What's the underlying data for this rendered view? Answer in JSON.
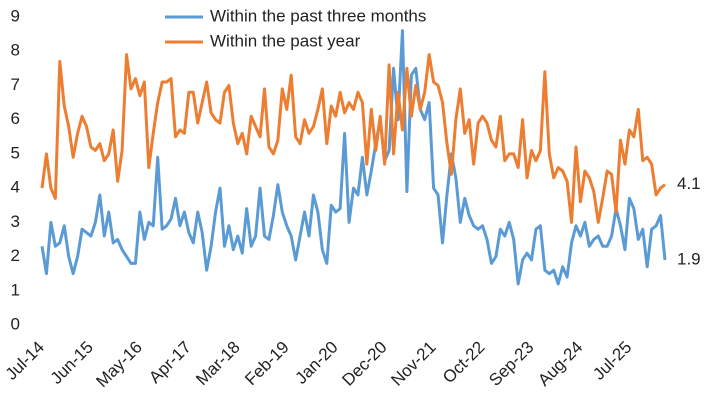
{
  "chart_data": {
    "type": "line",
    "categories": [
      "Jul-14",
      null,
      null,
      null,
      null,
      null,
      null,
      null,
      null,
      null,
      null,
      "Jun-15",
      null,
      null,
      null,
      null,
      null,
      null,
      null,
      null,
      null,
      null,
      "May-16",
      null,
      null,
      null,
      null,
      null,
      null,
      null,
      null,
      null,
      null,
      "Apr-17",
      null,
      null,
      null,
      null,
      null,
      null,
      null,
      null,
      null,
      null,
      "Mar-18",
      null,
      null,
      null,
      null,
      null,
      null,
      null,
      null,
      null,
      null,
      "Feb-19",
      null,
      null,
      null,
      null,
      null,
      null,
      null,
      null,
      null,
      null,
      "Jan-20",
      null,
      null,
      null,
      null,
      null,
      null,
      null,
      null,
      null,
      null,
      "Dec-20",
      null,
      null,
      null,
      null,
      null,
      null,
      null,
      null,
      null,
      null,
      "Nov-21",
      null,
      null,
      null,
      null,
      null,
      null,
      null,
      null,
      null,
      null,
      "Oct-22",
      null,
      null,
      null,
      null,
      null,
      null,
      null,
      null,
      null,
      null,
      "Sep-23",
      null,
      null,
      null,
      null,
      null,
      null,
      null,
      null,
      null,
      null,
      "Aug-24",
      null,
      null,
      null,
      null,
      null,
      null,
      null,
      null,
      null,
      null,
      "Jul-25",
      null,
      null,
      null,
      null,
      null,
      null,
      null,
      null
    ],
    "series": [
      {
        "name": "Within the past three months",
        "color": "#5b9bd5",
        "values": [
          2.3,
          1.5,
          3.0,
          2.3,
          2.4,
          2.9,
          2.0,
          1.5,
          2.0,
          2.8,
          2.7,
          2.6,
          3.0,
          3.8,
          2.6,
          3.3,
          2.4,
          2.5,
          2.2,
          2.0,
          1.8,
          1.8,
          3.3,
          2.5,
          3.0,
          2.9,
          4.9,
          2.8,
          2.9,
          3.1,
          3.7,
          2.9,
          3.3,
          2.7,
          2.4,
          3.3,
          2.7,
          1.6,
          2.3,
          3.3,
          4.0,
          2.3,
          2.9,
          2.2,
          2.6,
          2.1,
          3.4,
          2.3,
          2.6,
          4.0,
          2.6,
          2.5,
          3.2,
          4.1,
          3.3,
          2.9,
          2.6,
          1.9,
          2.6,
          3.3,
          2.6,
          3.8,
          3.3,
          2.2,
          1.8,
          3.5,
          3.3,
          3.4,
          5.6,
          3.0,
          4.0,
          3.8,
          4.9,
          3.8,
          4.5,
          5.3,
          6.0,
          4.8,
          5.1,
          7.5,
          6.0,
          8.6,
          3.9,
          7.3,
          7.5,
          6.3,
          6.0,
          6.5,
          4.0,
          3.8,
          2.4,
          3.8,
          5.0,
          4.3,
          3.0,
          3.7,
          3.2,
          2.9,
          2.8,
          2.9,
          2.5,
          1.8,
          2.0,
          2.8,
          2.6,
          3.0,
          2.5,
          1.2,
          1.9,
          2.1,
          1.9,
          2.8,
          2.9,
          1.6,
          1.5,
          1.6,
          1.2,
          1.7,
          1.4,
          2.4,
          2.9,
          2.6,
          3.0,
          2.3,
          2.5,
          2.6,
          2.3,
          2.3,
          2.6,
          3.4,
          2.9,
          2.2,
          3.7,
          3.4,
          2.5,
          2.8,
          1.7,
          2.8,
          2.9,
          3.2,
          1.9
        ]
      },
      {
        "name": "Within the past year",
        "color": "#ed7d31",
        "values": [
          4.0,
          5.0,
          4.0,
          3.7,
          7.7,
          6.4,
          5.8,
          4.9,
          5.6,
          6.1,
          5.8,
          5.2,
          5.1,
          5.3,
          4.8,
          5.0,
          5.7,
          4.2,
          5.1,
          7.9,
          6.9,
          7.2,
          6.7,
          7.1,
          4.6,
          5.6,
          6.5,
          7.1,
          7.1,
          7.2,
          5.5,
          5.7,
          5.6,
          6.8,
          6.8,
          5.9,
          6.5,
          7.1,
          6.2,
          6.0,
          5.9,
          6.8,
          7.0,
          5.9,
          5.3,
          5.6,
          5.0,
          6.1,
          5.8,
          5.5,
          6.9,
          5.2,
          5.0,
          5.4,
          6.9,
          6.3,
          7.3,
          5.5,
          5.3,
          6.0,
          5.6,
          5.8,
          6.3,
          6.9,
          5.3,
          6.4,
          6.1,
          6.8,
          6.2,
          6.5,
          6.3,
          6.8,
          6.5,
          4.7,
          6.3,
          5.1,
          6.1,
          4.7,
          7.6,
          5.0,
          6.8,
          5.7,
          7.5,
          6.1,
          7.0,
          6.3,
          6.8,
          7.9,
          7.1,
          7.0,
          6.5,
          5.3,
          4.4,
          6.0,
          6.9,
          5.6,
          6.0,
          4.7,
          5.9,
          6.1,
          5.9,
          5.4,
          5.2,
          6.1,
          4.8,
          5.0,
          5.0,
          4.6,
          6.0,
          4.3,
          5.1,
          4.8,
          5.1,
          7.4,
          5.0,
          4.3,
          4.6,
          4.5,
          4.2,
          3.0,
          5.2,
          3.6,
          4.5,
          4.3,
          3.9,
          3.0,
          3.7,
          4.5,
          4.4,
          3.3,
          5.4,
          4.7,
          5.7,
          5.5,
          6.3,
          4.8,
          4.9,
          4.7,
          3.8,
          4.0,
          4.1
        ]
      }
    ],
    "ylim": [
      0,
      9
    ],
    "yticks": [
      0,
      1,
      2,
      3,
      4,
      5,
      6,
      7,
      8,
      9
    ],
    "grid": false,
    "legend": "top"
  }
}
